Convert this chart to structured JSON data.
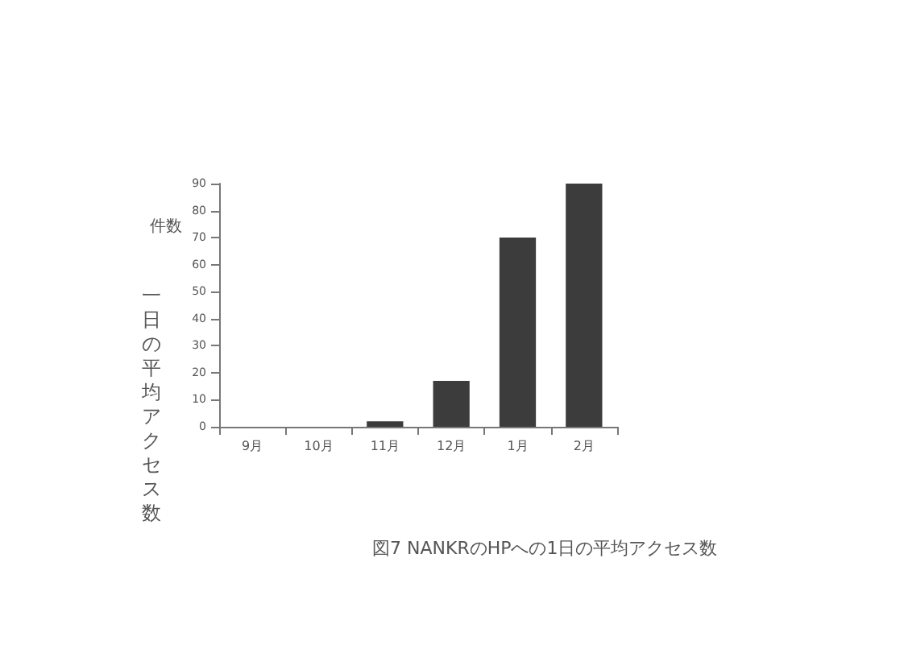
{
  "chart_data": {
    "type": "bar",
    "title": "図7 NANKRのHPへの1日の平均アクセス数",
    "ylabel": "一日の平均アクセス数",
    "annotations": [
      "件数"
    ],
    "categories": [
      "9月",
      "10月",
      "11月",
      "12月",
      "1月",
      "2月"
    ],
    "values": [
      null,
      null,
      2,
      17,
      70,
      90
    ],
    "color": "#3c3c3c",
    "ylim": [
      0,
      90
    ],
    "yticks": [
      0,
      10,
      20,
      30,
      40,
      50,
      60,
      70,
      80,
      90
    ],
    "grid": false
  }
}
